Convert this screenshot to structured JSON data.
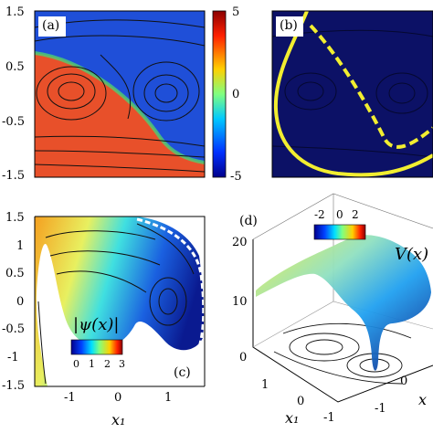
{
  "panels": {
    "a": {
      "label": "(a)",
      "y_ticks": [
        "1.5",
        "0.5",
        "-0.5",
        "-1.5"
      ],
      "colorbar_ticks": [
        "5",
        "0",
        "-5"
      ]
    },
    "b": {
      "label": "(b)"
    },
    "c": {
      "label": "(c)",
      "y_ticks": [
        "1.5",
        "1",
        "0.5",
        "0",
        "-0.5",
        "-1",
        "-1.5"
      ],
      "x_ticks": [
        "-1",
        "0",
        "1"
      ],
      "x_label": "x₁",
      "colorbar_title": "|ψ(x)|",
      "colorbar_ticks": [
        "0",
        "1",
        "2",
        "3"
      ]
    },
    "d": {
      "label": "(d)",
      "z_ticks": [
        "20",
        "10",
        "0"
      ],
      "x_ticks": [
        "1",
        "0",
        "-1"
      ],
      "x_label": "x₁",
      "y_ticks": [
        "-1",
        "0"
      ],
      "y_label": "x",
      "colorbar_ticks": [
        "-2",
        "0",
        "2"
      ],
      "surface_label": "V(x)"
    }
  },
  "colors": {
    "blue": "#1a4fd6",
    "red": "#e8462a",
    "navy": "#0c1166",
    "yellow": "#f2ee30"
  }
}
